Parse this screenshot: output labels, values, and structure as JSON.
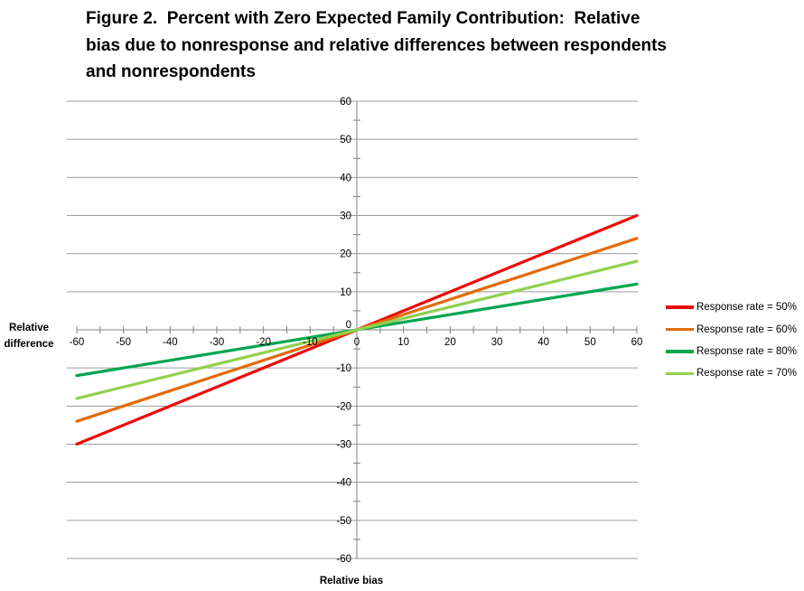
{
  "figure": {
    "title_lines": [
      "Figure 2.  Percent with Zero Expected Family Contribution:  Relative",
      "bias due to nonresponse and relative differences between respondents",
      "and nonrespondents"
    ],
    "y_axis_title_lines": [
      "Relative",
      "difference"
    ],
    "x_axis_title": "Relative bias"
  },
  "chart_data": {
    "type": "line",
    "title": "Figure 2. Percent with Zero Expected Family Contribution: Relative bias due to nonresponse and relative differences between respondents and nonrespondents",
    "xlabel": "Relative bias",
    "ylabel": "Relative difference",
    "xlim": [
      -60,
      60
    ],
    "ylim": [
      -60,
      60
    ],
    "x_major_ticks": [
      -60,
      -50,
      -40,
      -30,
      -20,
      -10,
      0,
      10,
      20,
      30,
      40,
      50,
      60
    ],
    "y_major_ticks": [
      -60,
      -50,
      -40,
      -30,
      -20,
      -10,
      0,
      10,
      20,
      30,
      40,
      50,
      60
    ],
    "minor_tick_step": 5,
    "grid": "horizontal-major-gridlines",
    "legend_position": "right",
    "axis_color": "#808080",
    "gridline_color": "#9c9c9c",
    "text_color": "#000000",
    "series": [
      {
        "name": "Response rate = 50%",
        "color": "#ee0a0a",
        "points": [
          [
            -60,
            -30
          ],
          [
            60,
            30
          ]
        ]
      },
      {
        "name": "Response rate = 60%",
        "color": "#e36c0a",
        "points": [
          [
            -60,
            -24
          ],
          [
            60,
            24
          ]
        ]
      },
      {
        "name": "Response rate = 80%",
        "color": "#00a551",
        "points": [
          [
            -60,
            -12
          ],
          [
            60,
            12
          ]
        ]
      },
      {
        "name": "Response rate = 70%",
        "color": "#92d050",
        "points": [
          [
            -60,
            -18
          ],
          [
            60,
            18
          ]
        ]
      }
    ]
  }
}
